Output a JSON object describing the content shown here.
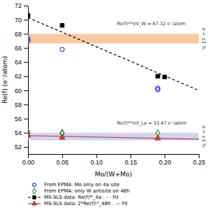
{
  "chart_data": {
    "type": "scatter",
    "xlabel": "Mo/(W+Mo)",
    "ylabel": "Re(f) (e⁻/atom)",
    "xlim": [
      0.0,
      0.25
    ],
    "ylim": [
      51,
      72
    ],
    "xticks": [
      {
        "value": 0.0,
        "label": "0.00"
      },
      0.05,
      {
        "value": 0.1,
        "label": "0.10"
      },
      0.15,
      {
        "value": 0.2,
        "label": "0.20"
      },
      0.25
    ],
    "yticks": [
      52,
      54,
      56,
      58,
      60,
      62,
      64,
      66,
      68,
      70,
      72
    ],
    "grid": false,
    "legend": "lower left",
    "series": [
      {
        "name": "From EPMA: Mo only on 4a site",
        "color": "blue",
        "marker": "circle-open",
        "x": [
          0.0,
          0.0,
          0.05,
          0.19,
          0.19
        ],
        "values": [
          67.3,
          67.0,
          65.8,
          60.1,
          60.3
        ]
      },
      {
        "name": "From EPMA: only W antisite on 48h",
        "color": "green",
        "marker": "diamond-open",
        "x": [
          0.0,
          0.0,
          0.05,
          0.05,
          0.19
        ],
        "values": [
          54.05,
          54.0,
          53.9,
          54.0,
          53.95
        ]
      },
      {
        "name": "MS-SLS data: Re(f)ᵂ_4a .  - - Fit",
        "color": "black",
        "marker": "square",
        "x": [
          0.0,
          0.05,
          0.19,
          0.2
        ],
        "values": [
          70.6,
          69.2,
          62.0,
          61.9
        ],
        "errors": [
          0.3,
          0.2,
          0.2,
          0.2
        ],
        "fit": {
          "x": [
            0.0,
            0.25
          ],
          "values": [
            70.3,
            60.0
          ],
          "line_style": "dashed"
        }
      },
      {
        "name": "MS-SLS data: 2*Re(f)ᴸ²_48h .  — Fit",
        "color": "#c04030",
        "marker": "triangle",
        "x": [
          0.0,
          0.05,
          0.19
        ],
        "values": [
          53.65,
          53.32,
          53.22
        ],
        "errors": [
          0.3,
          0.2,
          0.2
        ],
        "fit": {
          "x": [
            0.0,
            0.25
          ],
          "values": [
            53.6,
            53.1
          ],
          "line_style": "solid"
        }
      }
    ],
    "bands": [
      {
        "y0": 66.6468,
        "y1": 67.9932,
        "color": "#f4a460",
        "label": "Re(f)¹⁹²eV_W = 67.32 e⁻/atom",
        "note": "σ = ±1 %"
      },
      {
        "y0": 52.9353,
        "y1": 54.0047,
        "color": "#b0b8e8",
        "label": "Re(f)¹⁹²eV_La = 53.47 e⁻/atom",
        "note": "σ = ±1 %"
      }
    ]
  }
}
